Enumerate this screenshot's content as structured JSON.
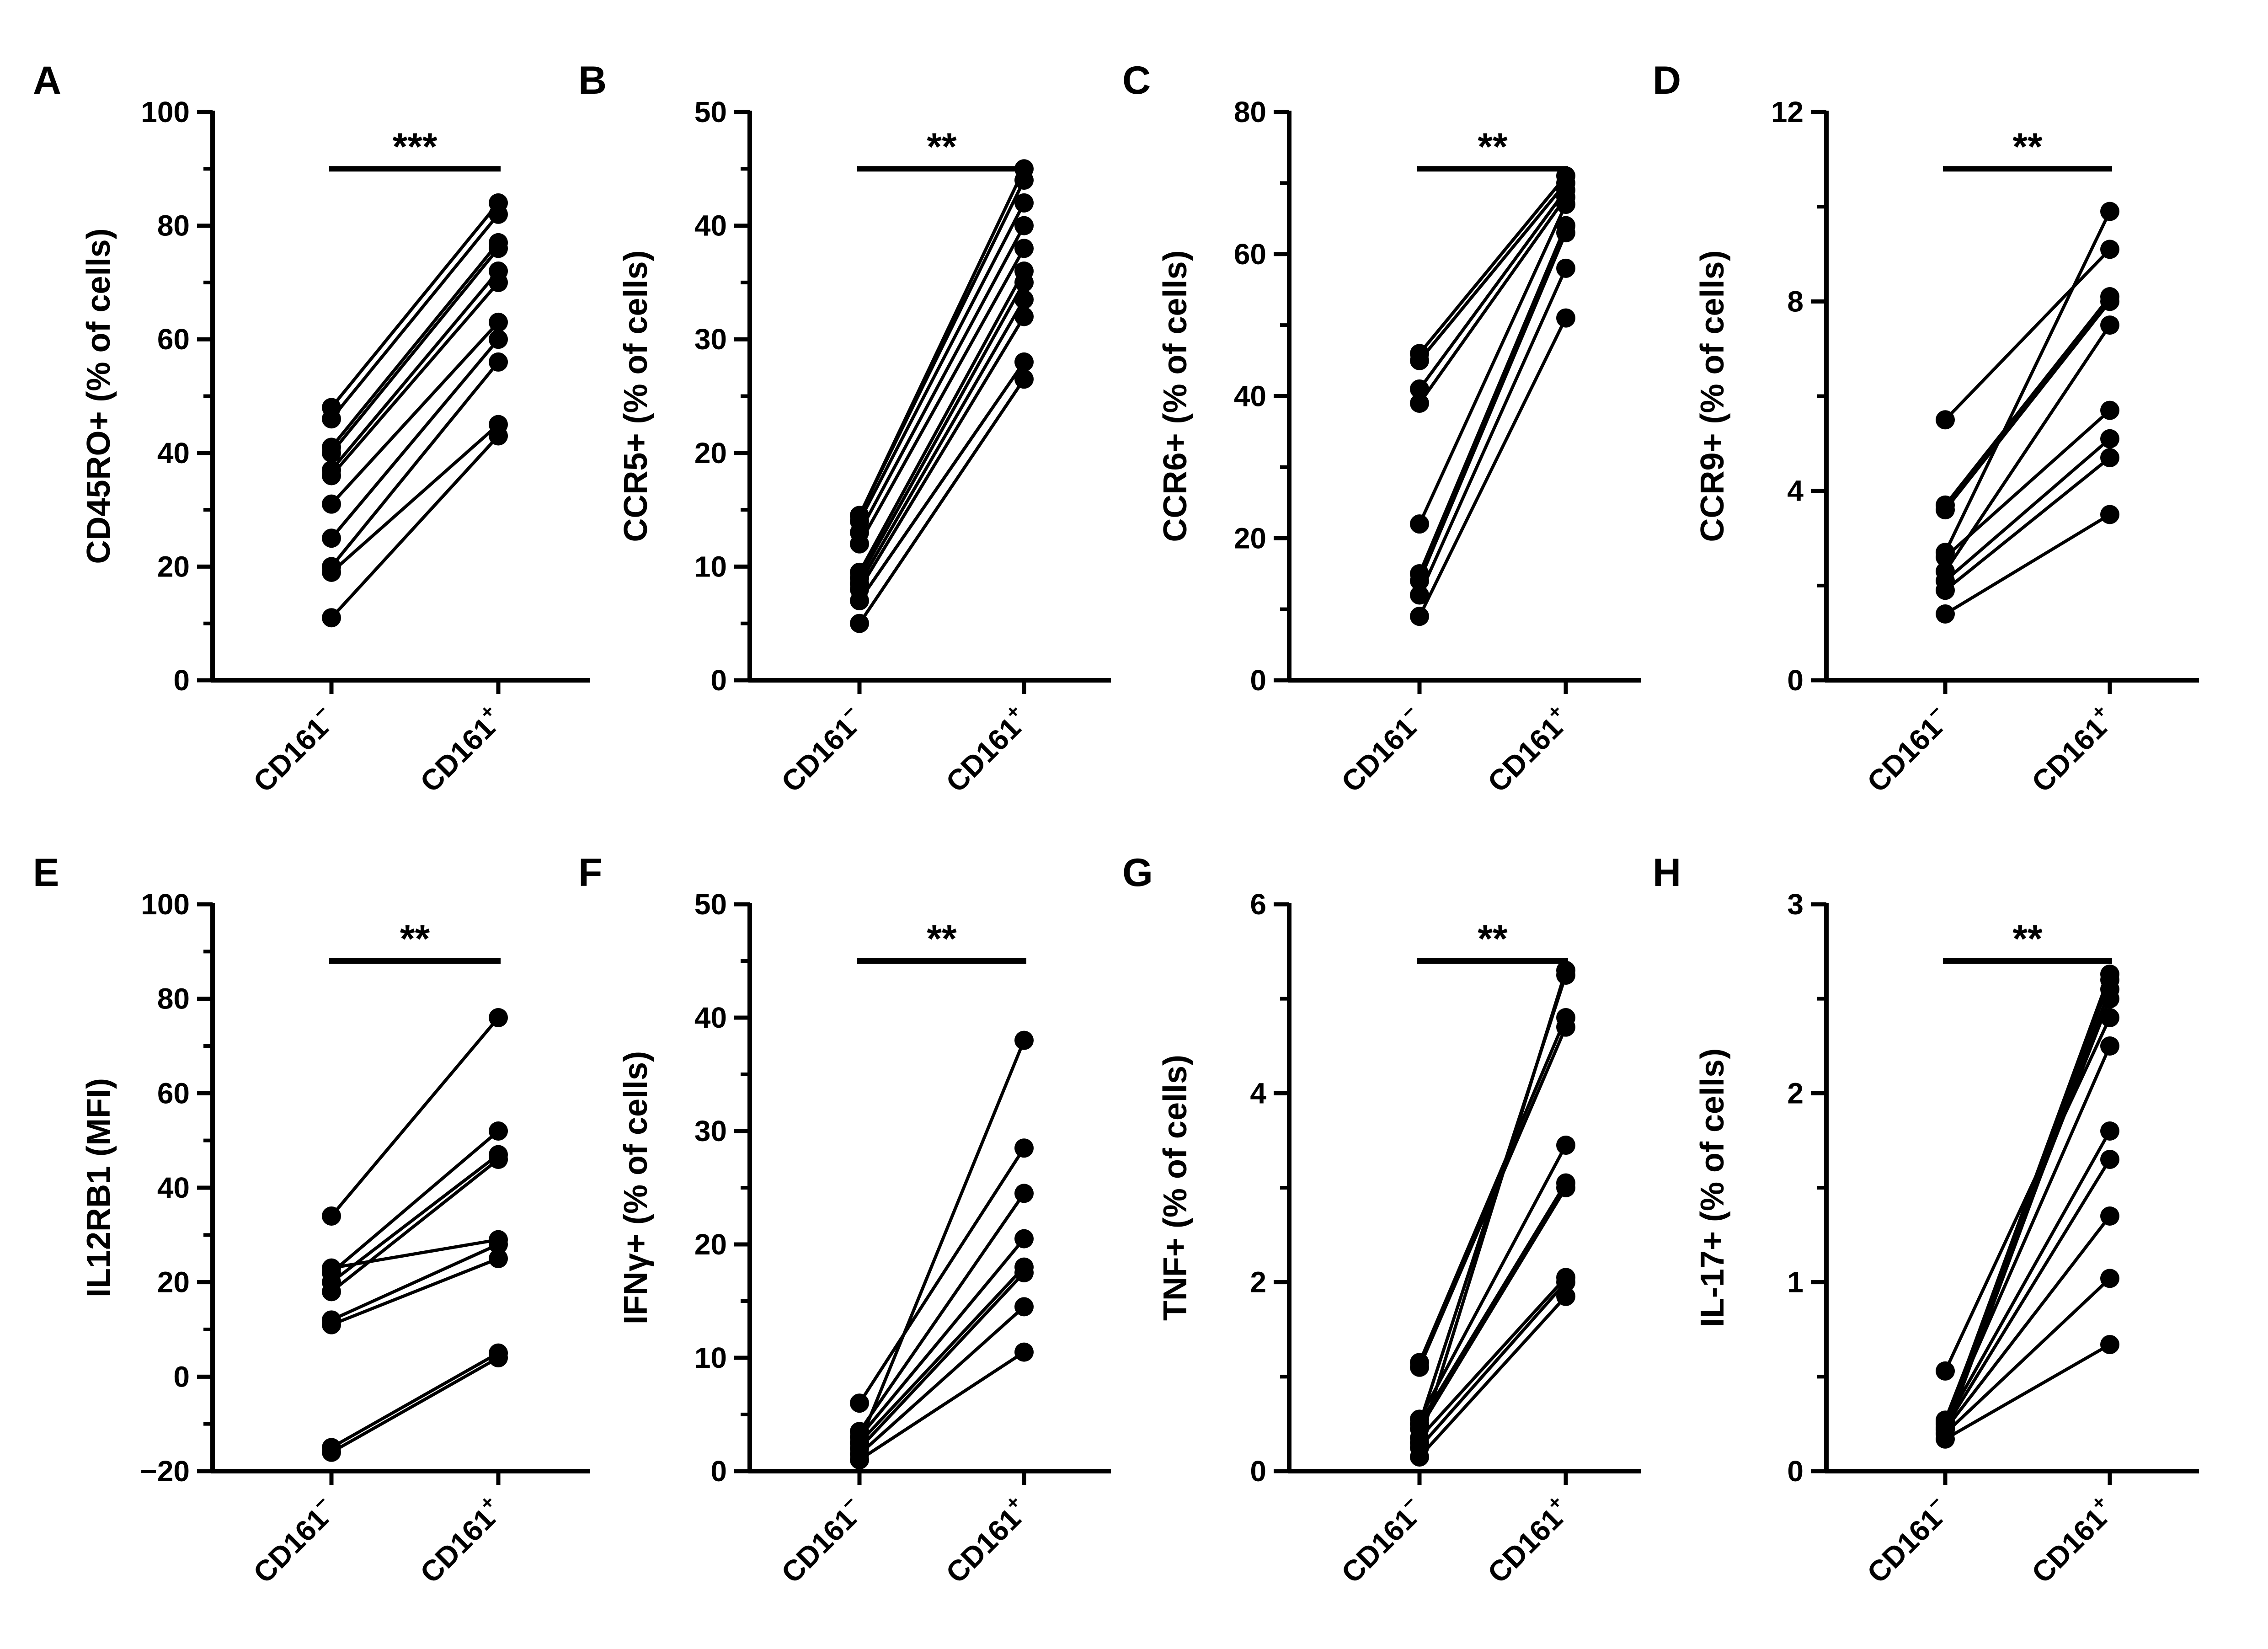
{
  "chart_data": [
    {
      "letter": "A",
      "type": "line",
      "ylabel": "CD45RO+ (% of cells)",
      "ylim": [
        0,
        100
      ],
      "ticks": [
        0,
        20,
        40,
        60,
        80,
        100
      ],
      "tick_labels": [
        "0",
        "20",
        "40",
        "60",
        "80",
        "100"
      ],
      "categories": [
        "CD161",
        "CD161"
      ],
      "superscripts": [
        "−",
        "+"
      ],
      "significance": "***",
      "pairs": [
        [
          11,
          43
        ],
        [
          19,
          45
        ],
        [
          20,
          56
        ],
        [
          25,
          60
        ],
        [
          31,
          63
        ],
        [
          36,
          70
        ],
        [
          37,
          72
        ],
        [
          40,
          76
        ],
        [
          41,
          77
        ],
        [
          46,
          82
        ],
        [
          48,
          84
        ]
      ]
    },
    {
      "letter": "B",
      "type": "line",
      "ylabel": "CCR5+ (% of cells)",
      "ylim": [
        0,
        50
      ],
      "ticks": [
        0,
        10,
        20,
        30,
        40,
        50
      ],
      "tick_labels": [
        "0",
        "10",
        "20",
        "30",
        "40",
        "50"
      ],
      "categories": [
        "CD161",
        "CD161"
      ],
      "superscripts": [
        "−",
        "+"
      ],
      "significance": "**",
      "pairs": [
        [
          5,
          26.5
        ],
        [
          7,
          28
        ],
        [
          8,
          32
        ],
        [
          8.5,
          33.5
        ],
        [
          9,
          35
        ],
        [
          9.5,
          36
        ],
        [
          12,
          38
        ],
        [
          13,
          40
        ],
        [
          14,
          42
        ],
        [
          14.5,
          44
        ],
        [
          14.5,
          45
        ]
      ]
    },
    {
      "letter": "C",
      "type": "line",
      "ylabel": "CCR6+ (% of cells)",
      "ylim": [
        0,
        80
      ],
      "ticks": [
        0,
        20,
        40,
        60,
        80
      ],
      "tick_labels": [
        "0",
        "20",
        "40",
        "60",
        "80"
      ],
      "categories": [
        "CD161",
        "CD161"
      ],
      "superscripts": [
        "−",
        "+"
      ],
      "significance": "**",
      "pairs": [
        [
          9,
          51
        ],
        [
          12,
          58
        ],
        [
          14,
          63
        ],
        [
          15,
          64
        ],
        [
          22,
          67
        ],
        [
          39,
          68
        ],
        [
          41,
          69
        ],
        [
          45,
          70
        ],
        [
          46,
          71
        ]
      ]
    },
    {
      "letter": "D",
      "type": "line",
      "ylabel": "CCR9+ (% of cells)",
      "ylim": [
        0,
        12
      ],
      "ticks": [
        0,
        4,
        8,
        12
      ],
      "tick_labels": [
        "0",
        "4",
        "8",
        "12"
      ],
      "categories": [
        "CD161",
        "CD161"
      ],
      "superscripts": [
        "−",
        "+"
      ],
      "significance": "**",
      "pairs": [
        [
          1.4,
          3.5
        ],
        [
          1.9,
          4.7
        ],
        [
          2.1,
          5.1
        ],
        [
          2.3,
          7.5
        ],
        [
          2.6,
          5.7
        ],
        [
          3.6,
          8.0
        ],
        [
          3.7,
          8.1
        ],
        [
          5.5,
          9.1
        ],
        [
          2.7,
          9.9
        ]
      ]
    },
    {
      "letter": "E",
      "type": "line",
      "ylabel": "IL12RB1 (MFI)",
      "ylim": [
        -20,
        100
      ],
      "ticks": [
        -20,
        0,
        20,
        40,
        60,
        80,
        100
      ],
      "tick_labels": [
        "−20",
        "0",
        "20",
        "40",
        "60",
        "80",
        "100"
      ],
      "categories": [
        "CD161",
        "CD161"
      ],
      "superscripts": [
        "−",
        "+"
      ],
      "significance": "**",
      "pairs": [
        [
          -16,
          4
        ],
        [
          -15,
          5
        ],
        [
          11,
          25
        ],
        [
          12,
          28
        ],
        [
          18,
          46
        ],
        [
          20,
          47
        ],
        [
          22,
          52
        ],
        [
          23,
          29
        ],
        [
          34,
          76
        ]
      ]
    },
    {
      "letter": "F",
      "type": "line",
      "ylabel": "IFNγ+ (% of cells)",
      "ylim": [
        0,
        50
      ],
      "ticks": [
        0,
        10,
        20,
        30,
        40,
        50
      ],
      "tick_labels": [
        "0",
        "10",
        "20",
        "30",
        "40",
        "50"
      ],
      "categories": [
        "CD161",
        "CD161"
      ],
      "superscripts": [
        "−",
        "+"
      ],
      "significance": "**",
      "pairs": [
        [
          1,
          10.5
        ],
        [
          1.5,
          14.5
        ],
        [
          2,
          17.5
        ],
        [
          2.5,
          18
        ],
        [
          3,
          20.5
        ],
        [
          3.5,
          24.5
        ],
        [
          6,
          28.5
        ],
        [
          2.5,
          38
        ]
      ]
    },
    {
      "letter": "G",
      "type": "line",
      "ylabel": "TNF+ (% of cells)",
      "ylim": [
        0,
        6
      ],
      "ticks": [
        0,
        2,
        4,
        6
      ],
      "tick_labels": [
        "0",
        "2",
        "4",
        "6"
      ],
      "categories": [
        "CD161",
        "CD161"
      ],
      "superscripts": [
        "−",
        "+"
      ],
      "significance": "**",
      "pairs": [
        [
          0.15,
          1.85
        ],
        [
          0.25,
          2.0
        ],
        [
          0.35,
          2.05
        ],
        [
          0.45,
          3.0
        ],
        [
          0.5,
          3.05
        ],
        [
          0.55,
          3.45
        ],
        [
          1.1,
          4.7
        ],
        [
          1.15,
          4.8
        ],
        [
          0.5,
          5.25
        ],
        [
          0.3,
          5.3
        ]
      ]
    },
    {
      "letter": "H",
      "type": "line",
      "ylabel": "IL-17+ (% of  cells)",
      "ylim": [
        0,
        3
      ],
      "ticks": [
        0,
        1,
        2,
        3
      ],
      "tick_labels": [
        "0",
        "1",
        "2",
        "3"
      ],
      "categories": [
        "CD161",
        "CD161"
      ],
      "superscripts": [
        "−",
        "+"
      ],
      "significance": "**",
      "pairs": [
        [
          0.17,
          0.67
        ],
        [
          0.2,
          1.02
        ],
        [
          0.22,
          1.35
        ],
        [
          0.23,
          1.65
        ],
        [
          0.25,
          1.8
        ],
        [
          0.26,
          2.25
        ],
        [
          0.53,
          2.4
        ],
        [
          0.27,
          2.5
        ],
        [
          0.2,
          2.55
        ],
        [
          0.22,
          2.6
        ],
        [
          0.25,
          2.63
        ]
      ]
    }
  ]
}
